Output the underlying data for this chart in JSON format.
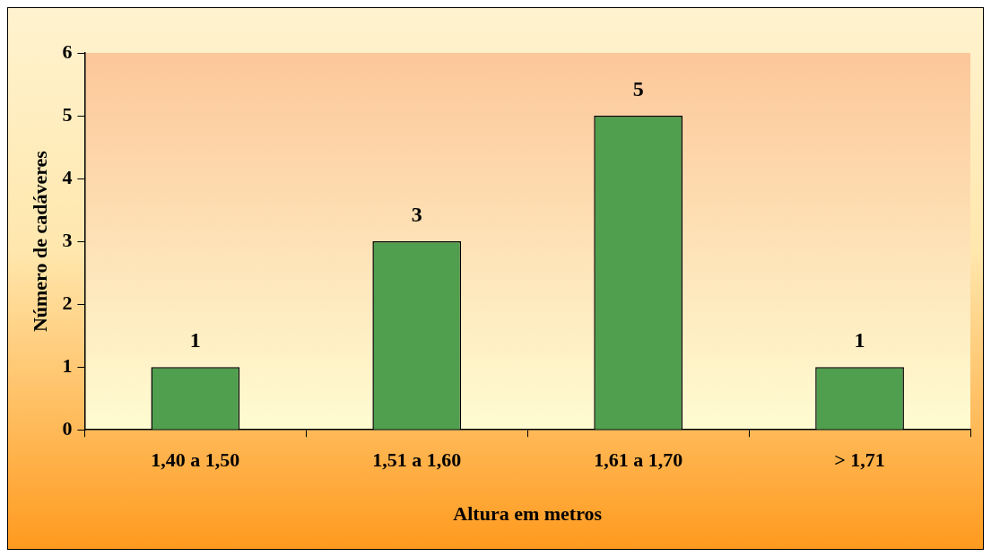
{
  "chart_data": {
    "type": "bar",
    "xlabel": "Altura em metros",
    "ylabel": "Número de cadáveres",
    "categories": [
      "1,40 a 1,50",
      "1,51 a 1,60",
      "1,61 a 1,70",
      "> 1,71"
    ],
    "values": [
      1,
      3,
      5,
      1
    ],
    "color": "#4f9f4f",
    "ylim": [
      0,
      6
    ],
    "yticks": [
      0,
      1,
      2,
      3,
      4,
      5,
      6
    ],
    "grid": false,
    "legend": false,
    "data_labels": true
  }
}
